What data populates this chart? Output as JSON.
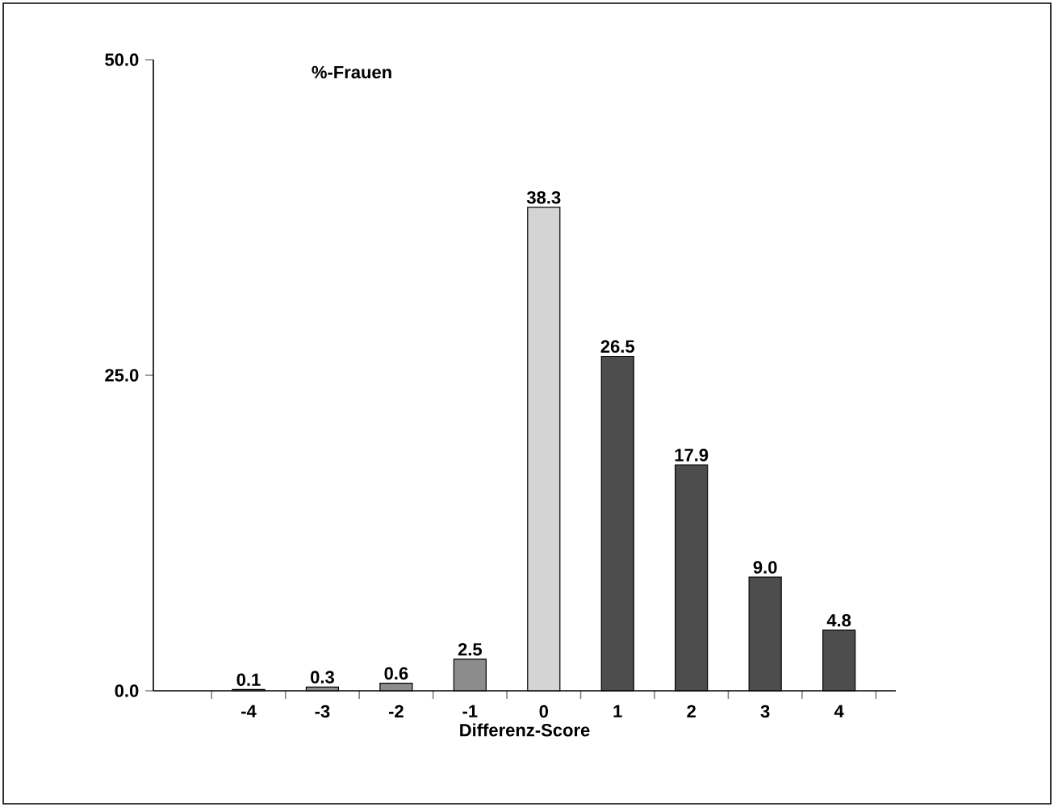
{
  "chart_data": {
    "type": "bar",
    "title": "%-Frauen",
    "xlabel": "Differenz-Score",
    "categories": [
      "-4",
      "-3",
      "-2",
      "-1",
      "0",
      "1",
      "2",
      "3",
      "4"
    ],
    "values": [
      0.1,
      0.3,
      0.6,
      2.5,
      38.3,
      26.5,
      17.9,
      9.0,
      4.8
    ],
    "colors": [
      "#8c8c8c",
      "#8c8c8c",
      "#8c8c8c",
      "#8c8c8c",
      "#d4d4d4",
      "#4d4d4d",
      "#4d4d4d",
      "#4d4d4d",
      "#4d4d4d"
    ],
    "ylim": [
      0,
      50
    ],
    "yticks": [
      {
        "value": 0,
        "label": "0.0"
      },
      {
        "value": 25,
        "label": "25.0"
      },
      {
        "value": 50,
        "label": "50.0"
      }
    ],
    "value_labels": [
      "0.1",
      "0.3",
      "0.6",
      "2.5",
      "38.3",
      "26.5",
      "17.9",
      "9.0",
      "4.8"
    ],
    "grid": false
  }
}
